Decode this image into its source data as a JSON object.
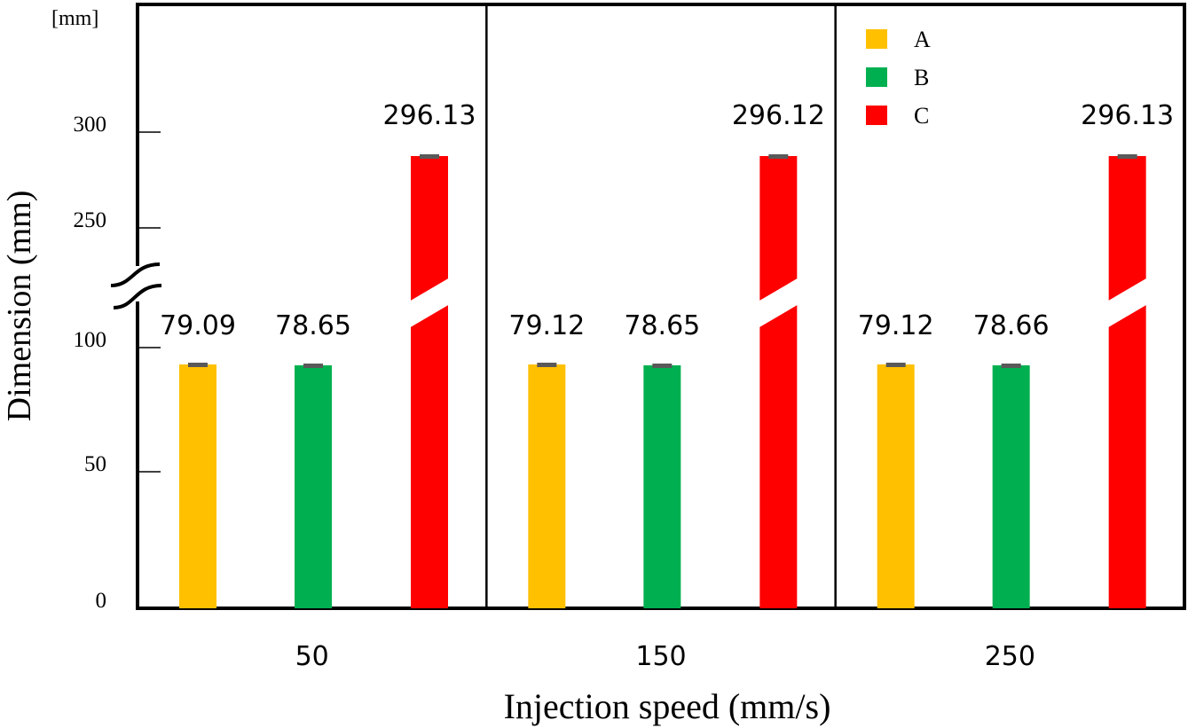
{
  "chart_data": {
    "type": "bar",
    "title": "",
    "xlabel": "Injection speed (mm/s)",
    "ylabel": "Dimension (mm)",
    "unit_label": "[mm]",
    "categories": [
      "50",
      "150",
      "250"
    ],
    "y_ticks": [
      "0",
      "50",
      "100",
      "250",
      "300"
    ],
    "axis_break": [
      100,
      250
    ],
    "ylim": [
      0,
      340
    ],
    "grid": false,
    "legend_position": "top-right",
    "series": [
      {
        "name": "A",
        "color": "#FFC000",
        "values": [
          79.09,
          79.12,
          79.12
        ],
        "labels": [
          "79.09",
          "79.12",
          "79.12"
        ]
      },
      {
        "name": "B",
        "color": "#00B050",
        "values": [
          78.65,
          78.65,
          78.66
        ],
        "labels": [
          "78.65",
          "78.65",
          "78.66"
        ]
      },
      {
        "name": "C",
        "color": "#FF0000",
        "values": [
          296.13,
          296.12,
          296.13
        ],
        "labels": [
          "296.13",
          "296.12",
          "296.13"
        ]
      }
    ],
    "error_bar_color": "#595959"
  }
}
